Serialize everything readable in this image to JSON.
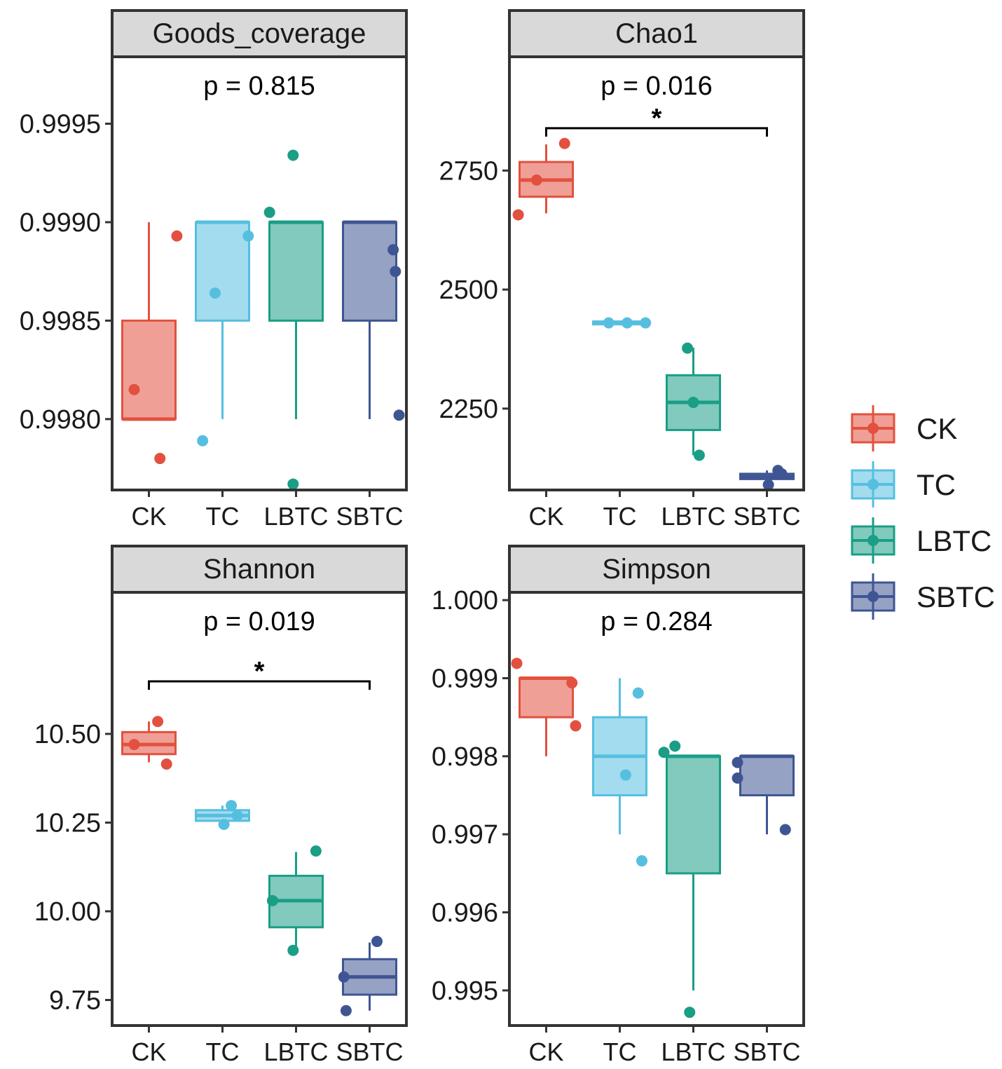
{
  "legend": {
    "title": "",
    "position": "right",
    "entries": [
      {
        "name": "CK",
        "color": "#e2513f"
      },
      {
        "name": "TC",
        "color": "#56bfe0"
      },
      {
        "name": "LBTC",
        "color": "#1a9e86"
      },
      {
        "name": "SBTC",
        "color": "#3f5593"
      }
    ]
  },
  "chart_data": [
    {
      "type": "boxplot",
      "title": "Goods_coverage",
      "p_label": "p = 0.815",
      "categories": [
        "CK",
        "TC",
        "LBTC",
        "SBTC"
      ],
      "ylim": [
        0.99764,
        0.99984
      ],
      "yticks": [
        0.998,
        0.9985,
        0.999,
        0.9995
      ],
      "ytick_labels": [
        "0.9980",
        "0.9985",
        "0.9990",
        "0.9995"
      ],
      "boxes": [
        {
          "group": "CK",
          "q1": 0.998,
          "median": 0.998,
          "q3": 0.9985,
          "whisker_low": 0.998,
          "whisker_high": 0.999
        },
        {
          "group": "TC",
          "q1": 0.9985,
          "median": 0.999,
          "q3": 0.999,
          "whisker_low": 0.998,
          "whisker_high": 0.999
        },
        {
          "group": "LBTC",
          "q1": 0.9985,
          "median": 0.999,
          "q3": 0.999,
          "whisker_low": 0.998,
          "whisker_high": 0.999
        },
        {
          "group": "SBTC",
          "q1": 0.9985,
          "median": 0.999,
          "q3": 0.999,
          "whisker_low": 0.998,
          "whisker_high": 0.999
        }
      ],
      "points": [
        {
          "group": "CK",
          "jitter": -0.2,
          "value": 0.99815
        },
        {
          "group": "CK",
          "jitter": 0.15,
          "value": 0.9978
        },
        {
          "group": "CK",
          "jitter": 0.38,
          "value": 0.99893
        },
        {
          "group": "TC",
          "jitter": -0.27,
          "value": 0.99789
        },
        {
          "group": "TC",
          "jitter": -0.1,
          "value": 0.99864
        },
        {
          "group": "TC",
          "jitter": 0.35,
          "value": 0.99893
        },
        {
          "group": "LBTC",
          "jitter": -0.36,
          "value": 0.99905
        },
        {
          "group": "LBTC",
          "jitter": -0.04,
          "value": 0.99767
        },
        {
          "group": "LBTC",
          "jitter": -0.04,
          "value": 0.99934
        },
        {
          "group": "SBTC",
          "jitter": 0.32,
          "value": 0.99886
        },
        {
          "group": "SBTC",
          "jitter": 0.35,
          "value": 0.99875
        },
        {
          "group": "SBTC",
          "jitter": 0.4,
          "value": 0.99802
        }
      ]
    },
    {
      "type": "boxplot",
      "title": "Chao1",
      "p_label": "p = 0.016",
      "significance": {
        "from": "CK",
        "to": "SBTC",
        "label": "*",
        "y": 2839
      },
      "categories": [
        "CK",
        "TC",
        "LBTC",
        "SBTC"
      ],
      "ylim": [
        2079,
        2989
      ],
      "yticks": [
        2250,
        2500,
        2750
      ],
      "ytick_labels": [
        "2250",
        "2500",
        "2750"
      ],
      "boxes": [
        {
          "group": "CK",
          "q1": 2695,
          "median": 2730,
          "q3": 2768,
          "whisker_low": 2660,
          "whisker_high": 2805
        },
        {
          "group": "TC",
          "q1": 2427,
          "median": 2430,
          "q3": 2433,
          "whisker_low": 2427,
          "whisker_high": 2433
        },
        {
          "group": "LBTC",
          "q1": 2205,
          "median": 2263,
          "q3": 2320,
          "whisker_low": 2152,
          "whisker_high": 2378
        },
        {
          "group": "SBTC",
          "q1": 2102,
          "median": 2107,
          "q3": 2113,
          "whisker_low": 2090,
          "whisker_high": 2120
        }
      ],
      "points": [
        {
          "group": "CK",
          "jitter": -0.38,
          "value": 2657
        },
        {
          "group": "CK",
          "jitter": -0.13,
          "value": 2730
        },
        {
          "group": "CK",
          "jitter": 0.25,
          "value": 2807
        },
        {
          "group": "TC",
          "jitter": -0.15,
          "value": 2430
        },
        {
          "group": "TC",
          "jitter": 0.1,
          "value": 2430
        },
        {
          "group": "TC",
          "jitter": 0.35,
          "value": 2430
        },
        {
          "group": "LBTC",
          "jitter": -0.08,
          "value": 2377
        },
        {
          "group": "LBTC",
          "jitter": 0.0,
          "value": 2263
        },
        {
          "group": "LBTC",
          "jitter": 0.08,
          "value": 2152
        },
        {
          "group": "SBTC",
          "jitter": 0.02,
          "value": 2090
        },
        {
          "group": "SBTC",
          "jitter": 0.2,
          "value": 2113
        },
        {
          "group": "SBTC",
          "jitter": 0.15,
          "value": 2120
        }
      ]
    },
    {
      "type": "boxplot",
      "title": "Shannon",
      "p_label": "p = 0.019",
      "significance": {
        "from": "CK",
        "to": "SBTC",
        "label": "*",
        "y": 10.648
      },
      "categories": [
        "CK",
        "TC",
        "LBTC",
        "SBTC"
      ],
      "ylim": [
        9.678,
        10.899
      ],
      "yticks": [
        9.75,
        10.0,
        10.25,
        10.5
      ],
      "ytick_labels": [
        "9.75",
        "10.00",
        "10.25",
        "10.50"
      ],
      "boxes": [
        {
          "group": "CK",
          "q1": 10.443,
          "median": 10.47,
          "q3": 10.505,
          "whisker_low": 10.42,
          "whisker_high": 10.535
        },
        {
          "group": "TC",
          "q1": 10.255,
          "median": 10.27,
          "q3": 10.285,
          "whisker_low": 10.245,
          "whisker_high": 10.298
        },
        {
          "group": "LBTC",
          "q1": 9.955,
          "median": 10.03,
          "q3": 10.1,
          "whisker_low": 9.89,
          "whisker_high": 10.167
        },
        {
          "group": "SBTC",
          "q1": 9.765,
          "median": 9.815,
          "q3": 9.865,
          "whisker_low": 9.72,
          "whisker_high": 9.912
        }
      ],
      "points": [
        {
          "group": "CK",
          "jitter": -0.2,
          "value": 10.47
        },
        {
          "group": "CK",
          "jitter": 0.12,
          "value": 10.535
        },
        {
          "group": "CK",
          "jitter": 0.24,
          "value": 10.415
        },
        {
          "group": "TC",
          "jitter": 0.02,
          "value": 10.245
        },
        {
          "group": "TC",
          "jitter": 0.12,
          "value": 10.298
        },
        {
          "group": "TC",
          "jitter": 0.2,
          "value": 10.27
        },
        {
          "group": "LBTC",
          "jitter": -0.32,
          "value": 10.03
        },
        {
          "group": "LBTC",
          "jitter": -0.04,
          "value": 9.89
        },
        {
          "group": "LBTC",
          "jitter": 0.27,
          "value": 10.17
        },
        {
          "group": "SBTC",
          "jitter": -0.35,
          "value": 9.815
        },
        {
          "group": "SBTC",
          "jitter": -0.32,
          "value": 9.72
        },
        {
          "group": "SBTC",
          "jitter": 0.1,
          "value": 9.915
        }
      ]
    },
    {
      "type": "boxplot",
      "title": "Simpson",
      "p_label": "p = 0.284",
      "categories": [
        "CK",
        "TC",
        "LBTC",
        "SBTC"
      ],
      "ylim": [
        0.99455,
        1.0001
      ],
      "yticks": [
        0.995,
        0.996,
        0.997,
        0.998,
        0.999,
        1.0
      ],
      "ytick_labels": [
        "0.995",
        "0.996",
        "0.997",
        "0.998",
        "0.999",
        "1.000"
      ],
      "boxes": [
        {
          "group": "CK",
          "q1": 0.9985,
          "median": 0.999,
          "q3": 0.999,
          "whisker_low": 0.998,
          "whisker_high": 0.999
        },
        {
          "group": "TC",
          "q1": 0.9975,
          "median": 0.998,
          "q3": 0.9985,
          "whisker_low": 0.997,
          "whisker_high": 0.999
        },
        {
          "group": "LBTC",
          "q1": 0.9965,
          "median": 0.998,
          "q3": 0.998,
          "whisker_low": 0.995,
          "whisker_high": 0.998
        },
        {
          "group": "SBTC",
          "q1": 0.9975,
          "median": 0.998,
          "q3": 0.998,
          "whisker_low": 0.997,
          "whisker_high": 0.998
        }
      ],
      "points": [
        {
          "group": "CK",
          "jitter": -0.4,
          "value": 0.99919
        },
        {
          "group": "CK",
          "jitter": 0.35,
          "value": 0.99894
        },
        {
          "group": "CK",
          "jitter": 0.4,
          "value": 0.99839
        },
        {
          "group": "TC",
          "jitter": 0.08,
          "value": 0.99776
        },
        {
          "group": "TC",
          "jitter": 0.25,
          "value": 0.99881
        },
        {
          "group": "TC",
          "jitter": 0.3,
          "value": 0.99666
        },
        {
          "group": "LBTC",
          "jitter": -0.4,
          "value": 0.99805
        },
        {
          "group": "LBTC",
          "jitter": -0.25,
          "value": 0.99813
        },
        {
          "group": "LBTC",
          "jitter": -0.05,
          "value": 0.99472
        },
        {
          "group": "SBTC",
          "jitter": -0.4,
          "value": 0.99792
        },
        {
          "group": "SBTC",
          "jitter": -0.4,
          "value": 0.99772
        },
        {
          "group": "SBTC",
          "jitter": 0.25,
          "value": 0.99706
        }
      ]
    }
  ]
}
